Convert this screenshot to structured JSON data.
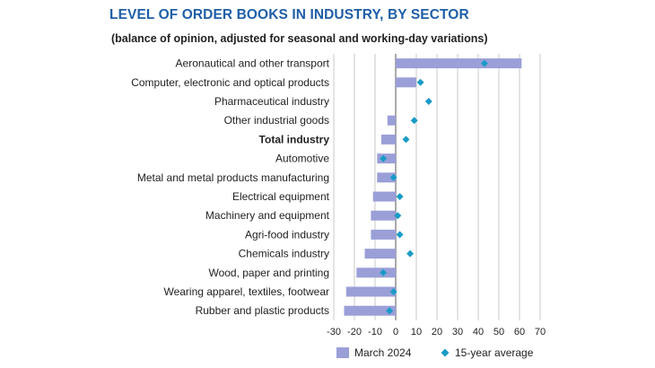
{
  "chart_data": {
    "type": "bar",
    "title": "LEVEL OF ORDER BOOKS IN INDUSTRY, BY SECTOR",
    "subtitle": "(balance of opinion, adjusted for seasonal and working-day variations)",
    "orientation": "horizontal",
    "categories": [
      "Aeronautical and other transport",
      "Computer, electronic and optical products",
      "Pharmaceutical industry",
      "Other industrial goods",
      "Total industry",
      "Automotive",
      "Metal and metal products manufacturing",
      "Electrical equipment",
      "Machinery and equipment",
      "Agri-food industry",
      "Chemicals industry",
      "Wood, paper and printing",
      "Wearing apparel, textiles, footwear",
      "Rubber and plastic products"
    ],
    "bold_categories": [
      "Total industry"
    ],
    "series": [
      {
        "name": "March 2024",
        "kind": "bar",
        "color": "#9a9fd8",
        "values": [
          61,
          10,
          0,
          -4,
          -7,
          -9,
          -9,
          -11,
          -12,
          -12,
          -15,
          -19,
          -24,
          -25
        ]
      },
      {
        "name": "15-year average",
        "kind": "marker",
        "color": "#1a9bc7",
        "values": [
          43,
          12,
          16,
          9,
          5,
          -6,
          -1,
          2,
          1,
          2,
          7,
          -6,
          -1,
          -3
        ]
      }
    ],
    "xlim": [
      -30,
      70
    ],
    "xticks": [
      "-30",
      "-20",
      "-10",
      "0",
      "10",
      "20",
      "30",
      "40",
      "50",
      "60",
      "70"
    ],
    "grid": true,
    "legend_position": "bottom"
  }
}
